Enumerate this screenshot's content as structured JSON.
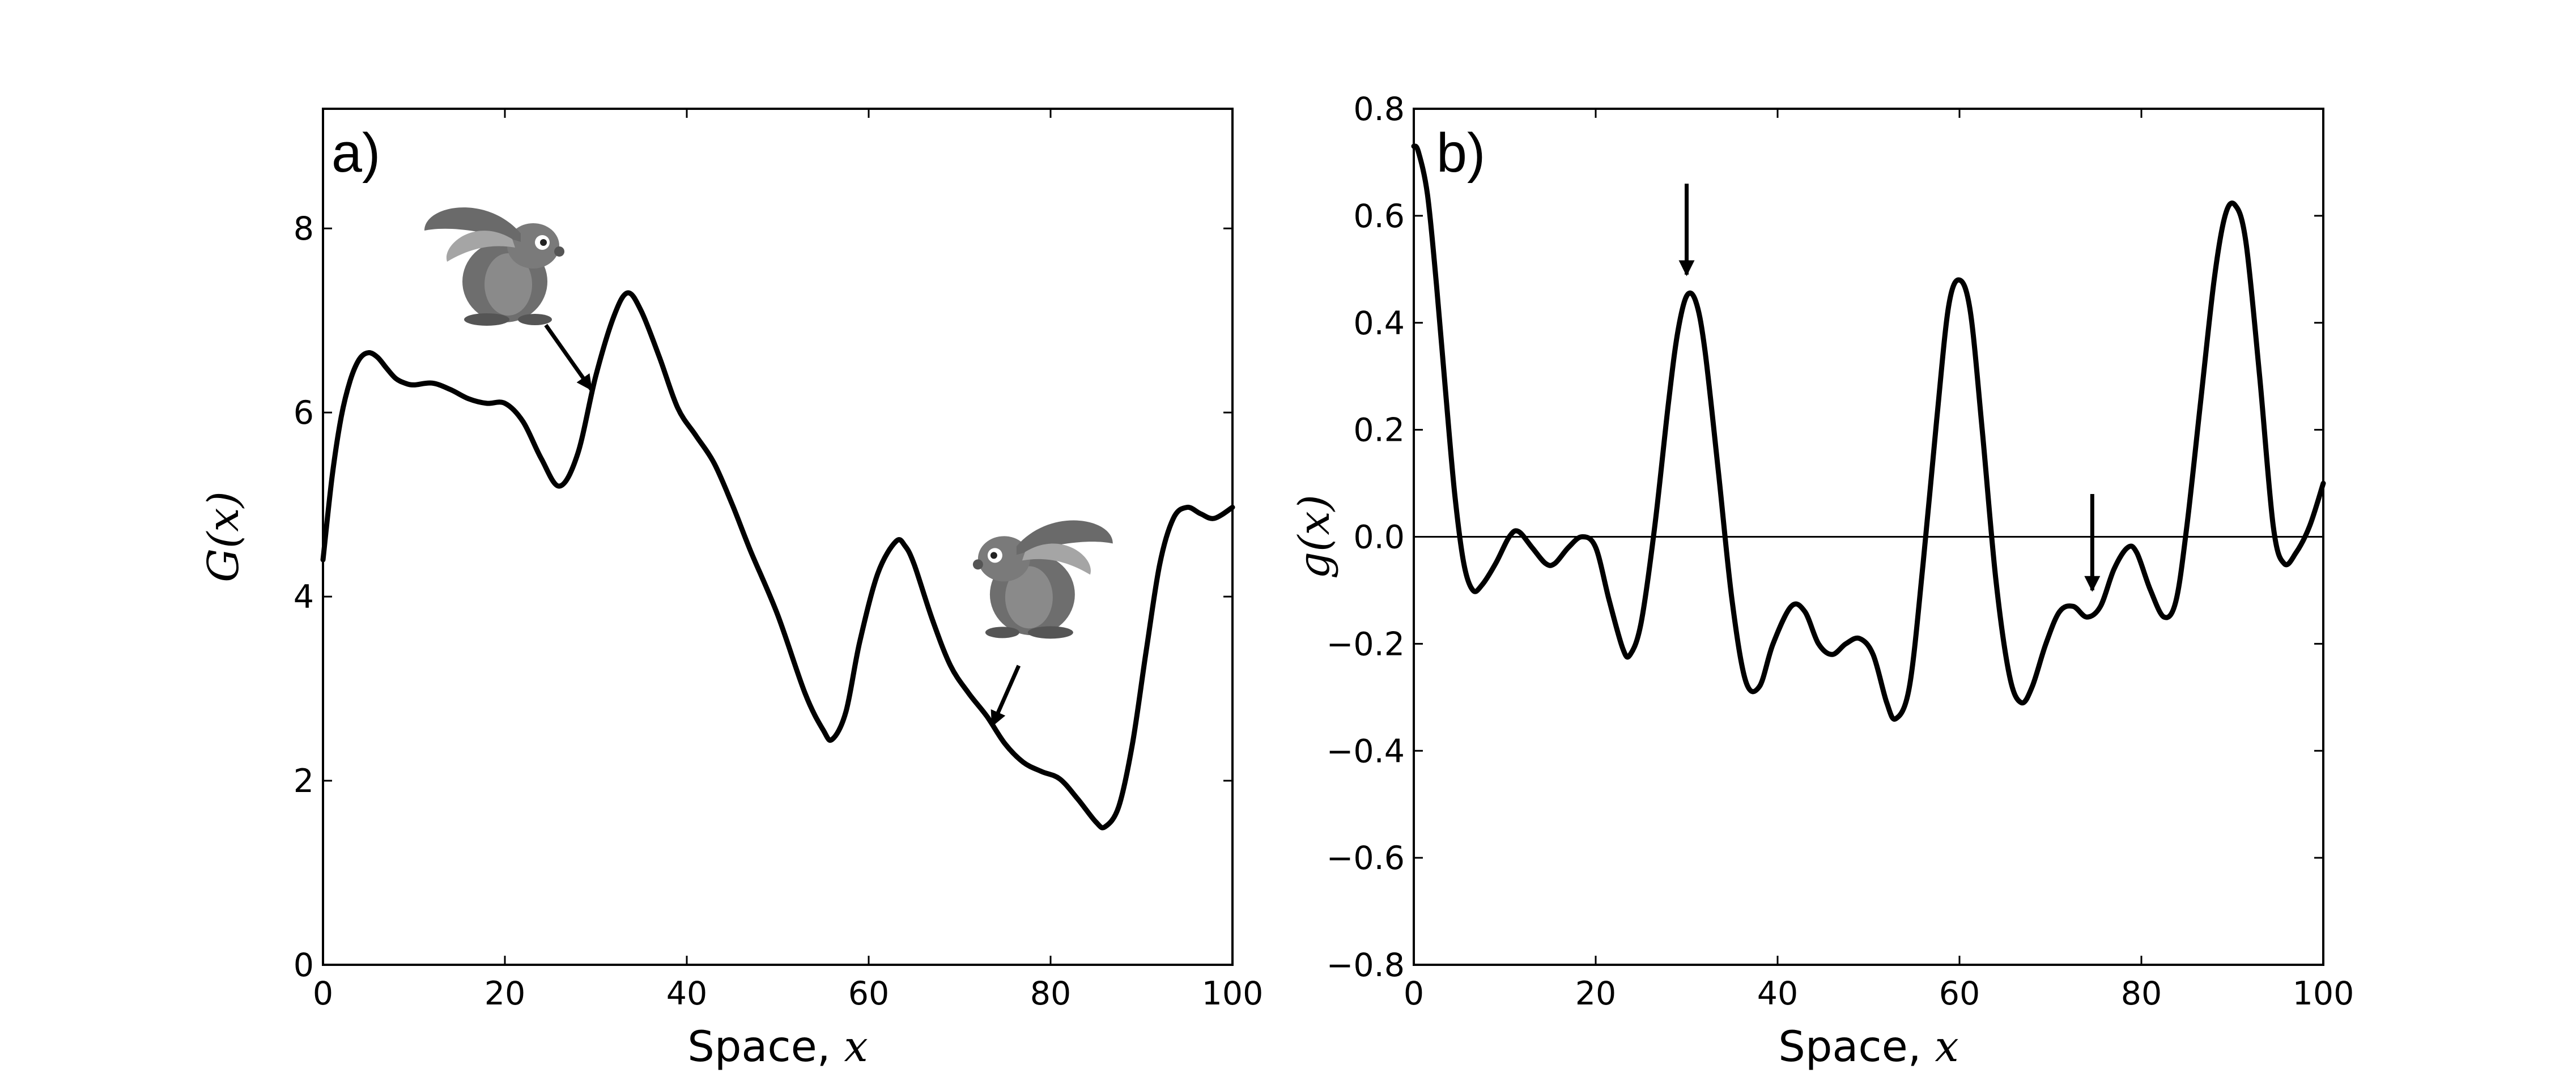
{
  "chart_data": [
    {
      "type": "line",
      "panel_label": "a)",
      "xlabel": "Space, x",
      "xlabel_text": "Space, ",
      "xlabel_var": "x",
      "ylabel": "G(x)",
      "xlim": [
        0,
        100
      ],
      "ylim": [
        0,
        9.3
      ],
      "xticks": [
        0,
        20,
        40,
        60,
        80,
        100
      ],
      "yticks": [
        0,
        2,
        4,
        6,
        8
      ],
      "xtick_labels": [
        "0",
        "20",
        "40",
        "60",
        "80",
        "100"
      ],
      "ytick_labels": [
        "0",
        "2",
        "4",
        "6",
        "8"
      ],
      "grid": false,
      "series": [
        {
          "x": [
            0,
            1,
            2,
            3,
            4,
            5,
            6,
            7,
            8,
            9,
            10,
            12,
            14,
            16,
            18,
            20,
            22,
            24,
            26,
            28,
            30,
            32,
            33.5,
            35,
            37,
            39,
            41,
            43,
            45,
            47,
            50,
            53,
            55,
            56,
            57.5,
            59,
            61,
            63,
            64,
            65,
            67,
            69,
            71,
            73,
            75,
            77,
            79,
            81,
            83,
            85,
            86,
            87.5,
            89,
            90.5,
            92,
            93.5,
            95,
            96.5,
            98,
            100
          ],
          "y": [
            4.4,
            5.3,
            5.95,
            6.35,
            6.58,
            6.65,
            6.6,
            6.48,
            6.37,
            6.32,
            6.3,
            6.32,
            6.25,
            6.15,
            6.1,
            6.1,
            5.9,
            5.5,
            5.2,
            5.55,
            6.4,
            7.05,
            7.3,
            7.1,
            6.6,
            6.05,
            5.75,
            5.45,
            5.0,
            4.5,
            3.8,
            2.95,
            2.55,
            2.45,
            2.75,
            3.5,
            4.25,
            4.6,
            4.55,
            4.35,
            3.75,
            3.25,
            2.95,
            2.7,
            2.4,
            2.2,
            2.1,
            2.02,
            1.8,
            1.55,
            1.5,
            1.72,
            2.4,
            3.4,
            4.35,
            4.85,
            4.97,
            4.9,
            4.85,
            4.97
          ]
        }
      ],
      "annotations": [
        {
          "type": "arrow",
          "from": [
            24.5,
            6.95
          ],
          "to": [
            29.5,
            6.25
          ]
        },
        {
          "type": "arrow",
          "from": [
            76.5,
            3.25
          ],
          "to": [
            73.6,
            2.6
          ]
        },
        {
          "type": "hare-icon",
          "at": [
            20.5,
            7.7
          ],
          "facing": "right"
        },
        {
          "type": "hare-icon",
          "at": [
            77.5,
            4.3
          ],
          "facing": "left"
        }
      ]
    },
    {
      "type": "line",
      "panel_label": "b)",
      "xlabel": "Space, x",
      "xlabel_text": "Space, ",
      "xlabel_var": "x",
      "ylabel": "g(x)",
      "xlim": [
        0,
        100
      ],
      "ylim": [
        -0.8,
        0.8
      ],
      "xticks": [
        0,
        20,
        40,
        60,
        80,
        100
      ],
      "yticks": [
        -0.8,
        -0.6,
        -0.4,
        -0.2,
        0.0,
        0.2,
        0.4,
        0.6,
        0.8
      ],
      "xtick_labels": [
        "0",
        "20",
        "40",
        "60",
        "80",
        "100"
      ],
      "ytick_labels": [
        "−0.8",
        "−0.6",
        "−0.4",
        "−0.2",
        "0.0",
        "0.2",
        "0.4",
        "0.6",
        "0.8"
      ],
      "zero_line": true,
      "grid": false,
      "series": [
        {
          "x": [
            0,
            0.5,
            1.5,
            2.5,
            3.5,
            4.5,
            5.5,
            6.5,
            7.5,
            9,
            10.5,
            11.5,
            13,
            14.5,
            15.5,
            17,
            18.5,
            20,
            21.5,
            23,
            23.8,
            25,
            26.5,
            28,
            29,
            30,
            31,
            32,
            33.5,
            35,
            36.5,
            38,
            39.5,
            41.5,
            43,
            44.5,
            46,
            47.5,
            49,
            50.5,
            52,
            53,
            54.5,
            56,
            57.5,
            58.8,
            60,
            61.2,
            62.5,
            64,
            65.5,
            66.8,
            68,
            69.5,
            71,
            72.5,
            74,
            75.5,
            77,
            78.5,
            79.5,
            81,
            82.5,
            83.8,
            85,
            86.5,
            88,
            89.2,
            90.3,
            91.5,
            93,
            94.5,
            95.7,
            97,
            98.5,
            100
          ],
          "y": [
            0.73,
            0.72,
            0.64,
            0.47,
            0.27,
            0.08,
            -0.05,
            -0.1,
            -0.09,
            -0.05,
            0.0,
            0.01,
            -0.02,
            -0.05,
            -0.05,
            -0.02,
            0.0,
            -0.02,
            -0.12,
            -0.21,
            -0.22,
            -0.16,
            0.02,
            0.25,
            0.38,
            0.45,
            0.44,
            0.35,
            0.12,
            -0.12,
            -0.27,
            -0.28,
            -0.2,
            -0.13,
            -0.14,
            -0.2,
            -0.22,
            -0.2,
            -0.19,
            -0.22,
            -0.31,
            -0.34,
            -0.28,
            -0.05,
            0.22,
            0.43,
            0.48,
            0.42,
            0.2,
            -0.08,
            -0.26,
            -0.31,
            -0.28,
            -0.2,
            -0.14,
            -0.13,
            -0.15,
            -0.13,
            -0.06,
            -0.02,
            -0.03,
            -0.1,
            -0.15,
            -0.12,
            0.02,
            0.25,
            0.48,
            0.6,
            0.62,
            0.55,
            0.3,
            0.02,
            -0.05,
            -0.03,
            0.02,
            0.1
          ]
        }
      ],
      "annotations": [
        {
          "type": "arrow",
          "from": [
            30,
            0.66
          ],
          "to": [
            30,
            0.49
          ]
        },
        {
          "type": "arrow",
          "from": [
            74.6,
            0.08
          ],
          "to": [
            74.6,
            -0.1
          ]
        }
      ]
    }
  ]
}
